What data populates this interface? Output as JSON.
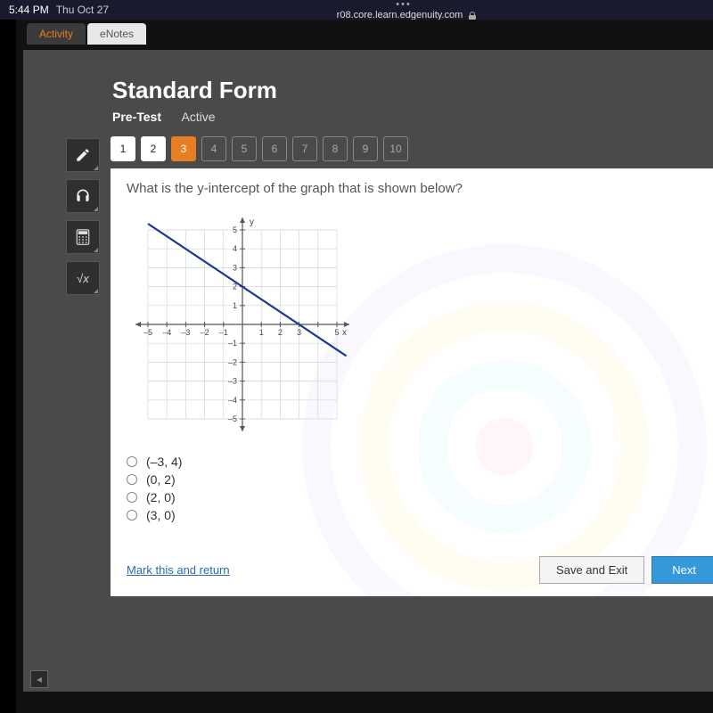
{
  "status": {
    "time": "5:44 PM",
    "date": "Thu Oct 27",
    "url": "r08.core.learn.edgenuity.com"
  },
  "tabs": {
    "activity": "Activity",
    "enotes": "eNotes"
  },
  "lesson": {
    "title": "Standard Form",
    "pretest": "Pre-Test",
    "active": "Active"
  },
  "tools": {
    "pencil": "✎",
    "audio": "head",
    "calc": "calc",
    "formula": "√x"
  },
  "qnums": [
    "1",
    "2",
    "3",
    "4",
    "5",
    "6",
    "7",
    "8",
    "9",
    "10"
  ],
  "question": "What is the y-intercept of the graph that is shown below?",
  "chart": {
    "xmin": -5,
    "xmax": 5,
    "ymin": -5,
    "ymax": 5,
    "xticks": [
      -5,
      -4,
      -3,
      -2,
      -1,
      1,
      2,
      3,
      4,
      5
    ],
    "yticks": [
      -5,
      -4,
      -3,
      -2,
      -1,
      1,
      2,
      3,
      4,
      5
    ],
    "xlabel": "x",
    "ylabel": "y",
    "grid_color": "#cfd8dc",
    "gridbox_min": -5,
    "gridbox_max": 5,
    "axis_color": "#555",
    "line_color": "#1a3b8b",
    "line_width": 2.2,
    "line": {
      "x1": -5,
      "y1": 5.33,
      "x2": 5.5,
      "y2": -1.67
    },
    "background": "#ffffff",
    "tick_font": 9
  },
  "options": [
    "(–3, 4)",
    "(0, 2)",
    "(2, 0)",
    "(3, 0)"
  ],
  "footer": {
    "mark": "Mark this and return",
    "save": "Save and Exit",
    "next": "Next"
  },
  "colors": {
    "accent": "#e67e22",
    "panel_bg": "#ffffff",
    "workspace_bg": "#4a4a4a",
    "next_btn": "#3498db"
  }
}
